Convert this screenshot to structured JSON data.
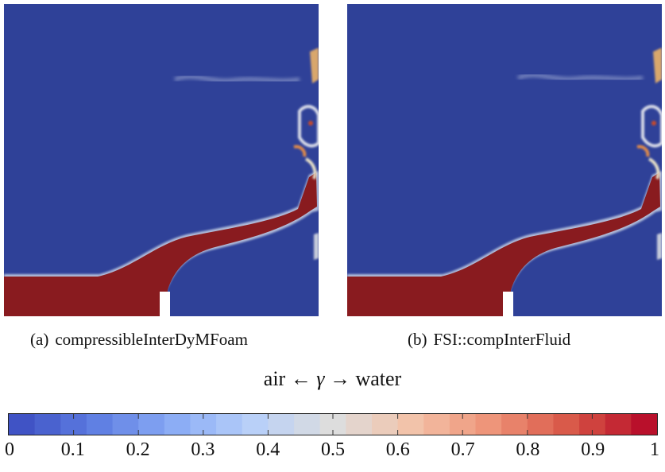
{
  "panels": [
    {
      "tag": "(a)",
      "caption": "compressibleInterDyMFoam"
    },
    {
      "tag": "(b)",
      "caption": "FSI::compInterFluid"
    }
  ],
  "colorbar": {
    "title_left": "air",
    "left_arrow": "←",
    "variable": "γ",
    "right_arrow": "→",
    "title_right": "water",
    "ticks": [
      "0",
      "0.1",
      "0.2",
      "0.3",
      "0.4",
      "0.5",
      "0.6",
      "0.7",
      "0.8",
      "0.9",
      "1"
    ],
    "range": [
      0,
      1
    ],
    "colormap": [
      "#3b4cc0",
      "#5b7ae0",
      "#88aaf5",
      "#b7cff9",
      "#dddddd",
      "#f3c2a8",
      "#ee9176",
      "#d65244",
      "#b40426"
    ]
  },
  "colors": {
    "air": "#2f4198",
    "water": "#891b1f",
    "obstacle": "#ffffff"
  }
}
